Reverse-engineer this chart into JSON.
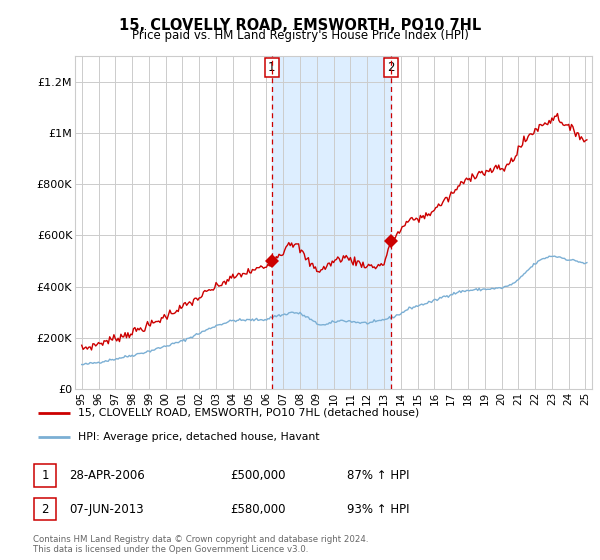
{
  "title": "15, CLOVELLY ROAD, EMSWORTH, PO10 7HL",
  "subtitle": "Price paid vs. HM Land Registry's House Price Index (HPI)",
  "hpi_label": "HPI: Average price, detached house, Havant",
  "property_label": "15, CLOVELLY ROAD, EMSWORTH, PO10 7HL (detached house)",
  "footnote": "Contains HM Land Registry data © Crown copyright and database right 2024.\nThis data is licensed under the Open Government Licence v3.0.",
  "transaction1": {
    "num": "1",
    "date": "28-APR-2006",
    "price": "£500,000",
    "hpi": "87% ↑ HPI"
  },
  "transaction2": {
    "num": "2",
    "date": "07-JUN-2013",
    "price": "£580,000",
    "hpi": "93% ↑ HPI"
  },
  "vline1_year": 2006.32,
  "vline2_year": 2013.43,
  "ylim": [
    0,
    1300000
  ],
  "yticks": [
    0,
    200000,
    400000,
    600000,
    800000,
    1000000,
    1200000
  ],
  "ytick_labels": [
    "£0",
    "£200K",
    "£400K",
    "£600K",
    "£800K",
    "£1M",
    "£1.2M"
  ],
  "red_color": "#cc0000",
  "blue_color": "#7bafd4",
  "shading_color": "#ddeeff",
  "vline_color": "#cc0000",
  "grid_color": "#cccccc",
  "marker1_value": 500000,
  "marker2_value": 580000,
  "xtick_years": [
    1995,
    1996,
    1997,
    1998,
    1999,
    2000,
    2001,
    2002,
    2003,
    2004,
    2005,
    2006,
    2007,
    2008,
    2009,
    2010,
    2011,
    2012,
    2013,
    2014,
    2015,
    2016,
    2017,
    2018,
    2019,
    2020,
    2021,
    2022,
    2023,
    2024,
    2025
  ],
  "xtick_labels": [
    "95",
    "96",
    "97",
    "98",
    "99",
    "00",
    "01",
    "02",
    "03",
    "04",
    "05",
    "06",
    "07",
    "08",
    "09",
    "10",
    "11",
    "12",
    "13",
    "14",
    "15",
    "16",
    "17",
    "18",
    "19",
    "20",
    "21",
    "22",
    "23",
    "24",
    "25"
  ]
}
